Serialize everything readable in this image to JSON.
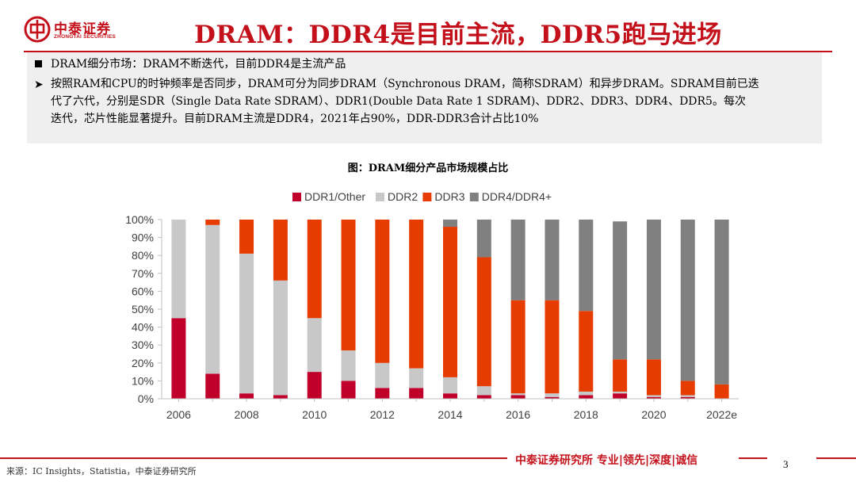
{
  "header": {
    "logo_cn": "中泰证券",
    "logo_en": "ZHONGTAI SECURITIES",
    "title": "DRAM：DDR4是目前主流，DDR5跑马进场"
  },
  "summary": {
    "heading": "DRAM细分市场：DRAM不断迭代，目前DDR4是主流产品",
    "body_lines": [
      "按照RAM和CPU的时钟频率是否同步，DRAM可分为同步DRAM（Synchronous DRAM，简称SDRAM）和异步DRAM。SDRAM目前已迭",
      "代了六代，分别是SDR（Single Data Rate SDRAM）、DDR1(Double Data Rate 1 SDRAM)、DDR2、DDR3、DDR4、DDR5。每次",
      "迭代，芯片性能显著提升。目前DRAM主流是DDR4，2021年占90%，DDR-DDR3合计占比10%"
    ]
  },
  "figure": {
    "caption": "图：DRAM细分产品市场规模占比"
  },
  "chart_data": {
    "type": "bar",
    "stacked": true,
    "categories": [
      "2006",
      "2007",
      "2008",
      "2009",
      "2010",
      "2011",
      "2012",
      "2013",
      "2014",
      "2015",
      "2016",
      "2017",
      "2018",
      "2019",
      "2020",
      "2021",
      "2022e"
    ],
    "x_tick_labels": [
      "2006",
      "2008",
      "2010",
      "2012",
      "2014",
      "2016",
      "2018",
      "2020",
      "2022e"
    ],
    "y_tick_labels": [
      "0%",
      "10%",
      "20%",
      "30%",
      "40%",
      "50%",
      "60%",
      "70%",
      "80%",
      "90%",
      "100%"
    ],
    "ylim": [
      0,
      100
    ],
    "legend_position": "top",
    "series": [
      {
        "name": "DDR1/Other",
        "color": "#c0002b",
        "values": [
          45,
          14,
          3,
          2,
          15,
          10,
          6,
          6,
          3,
          2,
          2,
          1,
          2,
          3,
          1,
          1,
          0
        ]
      },
      {
        "name": "DDR2",
        "color": "#c8c8c8",
        "values": [
          55,
          83,
          78,
          64,
          30,
          17,
          14,
          11,
          9,
          5,
          1,
          2,
          2,
          1,
          1,
          1,
          0
        ]
      },
      {
        "name": "DDR3",
        "color": "#e63c00",
        "values": [
          0,
          3,
          19,
          34,
          55,
          73,
          80,
          83,
          84,
          72,
          52,
          52,
          45,
          18,
          20,
          8,
          8
        ]
      },
      {
        "name": "DDR4/DDR4+",
        "color": "#808080",
        "values": [
          0,
          0,
          0,
          0,
          0,
          0,
          0,
          0,
          4,
          21,
          45,
          45,
          51,
          77,
          78,
          90,
          92
        ]
      }
    ]
  },
  "footer": {
    "slogan": "中泰证券研究所 专业|领先|深度|诚信",
    "page_number": "3",
    "source": "来源：IC Insights，Statistia，中泰证券研究所"
  }
}
